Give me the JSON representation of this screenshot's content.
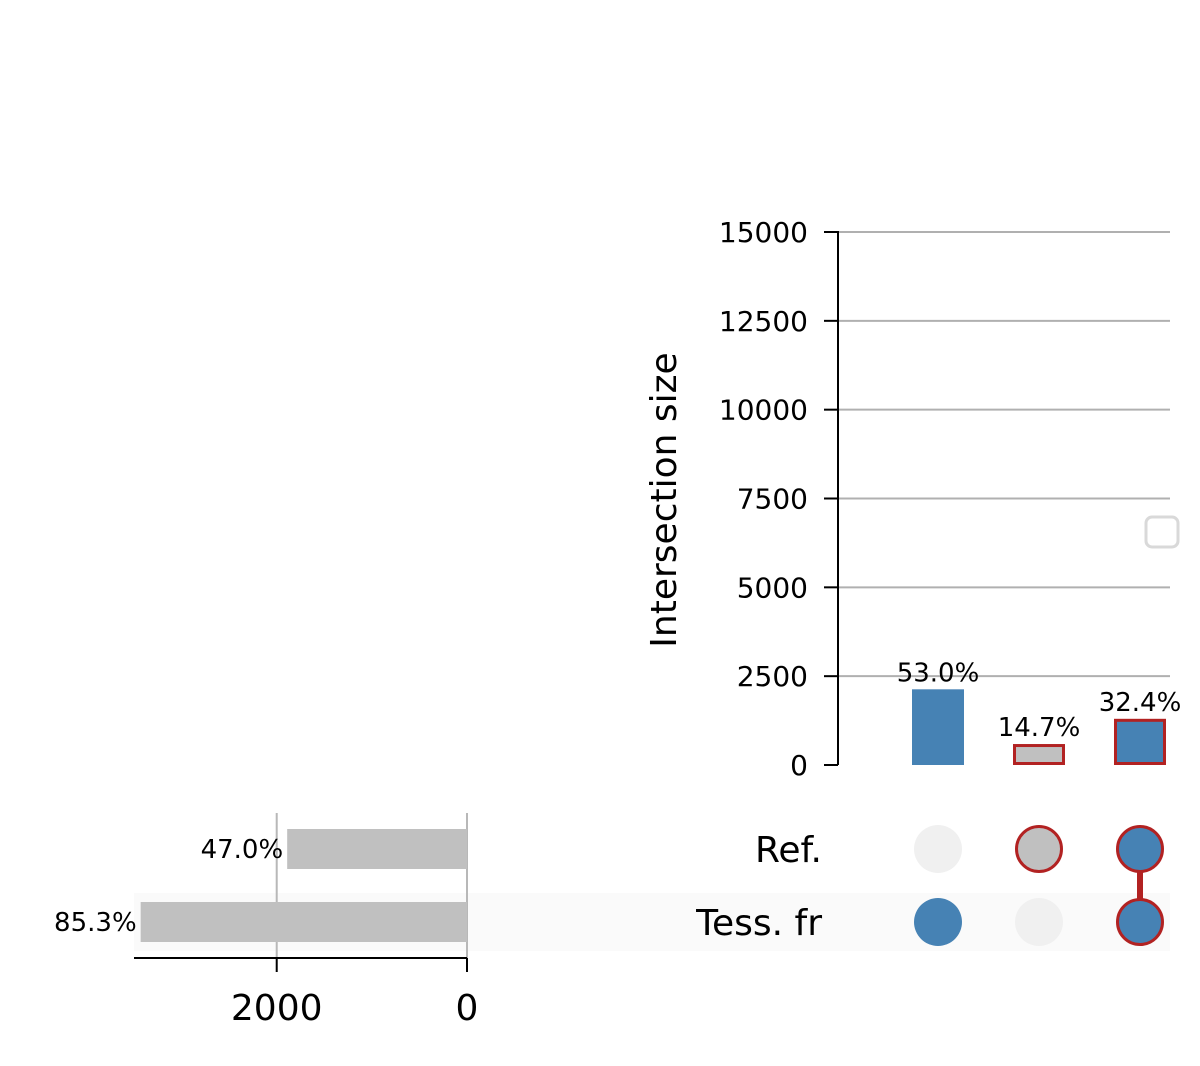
{
  "chart_data": {
    "type": "upset",
    "intersections": {
      "ylabel": "Intersection size",
      "ylim": [
        0,
        15000
      ],
      "yticks": [
        0,
        2500,
        5000,
        7500,
        10000,
        12500,
        15000
      ],
      "ytick_labels": [
        "0",
        "2500",
        "5000",
        "7500",
        "10000",
        "12500",
        "15000"
      ],
      "bars": [
        {
          "value": 2130,
          "label": "53.0%",
          "members": [
            false,
            true
          ],
          "color": "#4682b4",
          "highlighted": false
        },
        {
          "value": 590,
          "label": "14.7%",
          "members": [
            true,
            false
          ],
          "color": "#c0c0c0",
          "highlighted": true
        },
        {
          "value": 1300,
          "label": "32.4%",
          "members": [
            true,
            true
          ],
          "color": "#4682b4",
          "highlighted": true
        }
      ],
      "highlight_color": "#b22222",
      "grid": true
    },
    "sets": [
      {
        "name": "Ref.",
        "size": 1890,
        "label": "47.0%"
      },
      {
        "name": "Tess. fr",
        "size": 3430,
        "label": "85.3%"
      }
    ],
    "set_size_axis": {
      "xticks": [
        2000,
        0
      ],
      "xtick_labels": [
        "2000",
        "0"
      ],
      "xlim": [
        3500,
        0
      ]
    },
    "set_bar_color": "#c0c0c0",
    "empty_dot_color": "#f0f0f0"
  }
}
